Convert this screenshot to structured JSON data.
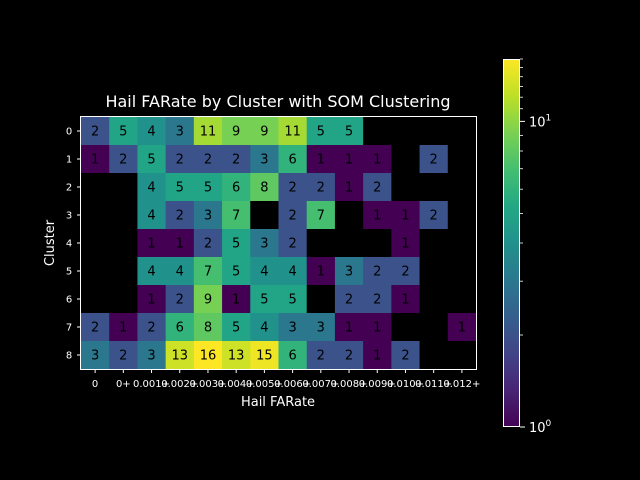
{
  "chart_data": {
    "type": "heatmap",
    "title": "Hail FARate by Cluster with SOM Clustering",
    "xlabel": "Hail FARate",
    "ylabel": "Cluster",
    "x_tick_labels": [
      "0",
      "0+",
      "0.001+",
      "0.002+",
      "0.003+",
      "0.004+",
      "0.005+",
      "0.006+",
      "0.007+",
      "0.008+",
      "0.009+",
      "0.010+",
      "0.011+",
      "0.012+"
    ],
    "y_tick_labels": [
      "0",
      "1",
      "2",
      "3",
      "4",
      "5",
      "6",
      "7",
      "8"
    ],
    "values": [
      [
        2,
        5,
        4,
        3,
        11,
        9,
        9,
        11,
        5,
        5,
        null,
        null,
        null,
        null
      ],
      [
        1,
        2,
        5,
        2,
        2,
        2,
        3,
        6,
        1,
        1,
        1,
        null,
        2,
        null
      ],
      [
        null,
        null,
        4,
        5,
        5,
        6,
        8,
        2,
        2,
        1,
        2,
        null,
        null,
        null
      ],
      [
        null,
        null,
        4,
        2,
        3,
        7,
        null,
        2,
        7,
        null,
        1,
        1,
        2,
        null
      ],
      [
        null,
        null,
        1,
        1,
        2,
        5,
        3,
        2,
        null,
        null,
        null,
        1,
        null,
        null
      ],
      [
        null,
        null,
        4,
        4,
        7,
        5,
        4,
        4,
        1,
        3,
        2,
        2,
        null,
        null
      ],
      [
        null,
        null,
        1,
        2,
        9,
        1,
        5,
        5,
        null,
        2,
        2,
        1,
        null,
        null
      ],
      [
        2,
        1,
        2,
        6,
        8,
        5,
        4,
        3,
        3,
        1,
        1,
        null,
        null,
        1
      ],
      [
        3,
        2,
        3,
        13,
        16,
        13,
        15,
        6,
        2,
        2,
        1,
        2,
        null,
        null
      ]
    ],
    "color_scale": "log",
    "colormap": "viridis",
    "colorbar_range": [
      1,
      16
    ],
    "colorbar_tick_labels": [
      "10^0",
      "10^1"
    ],
    "missing_color": "#000000"
  }
}
